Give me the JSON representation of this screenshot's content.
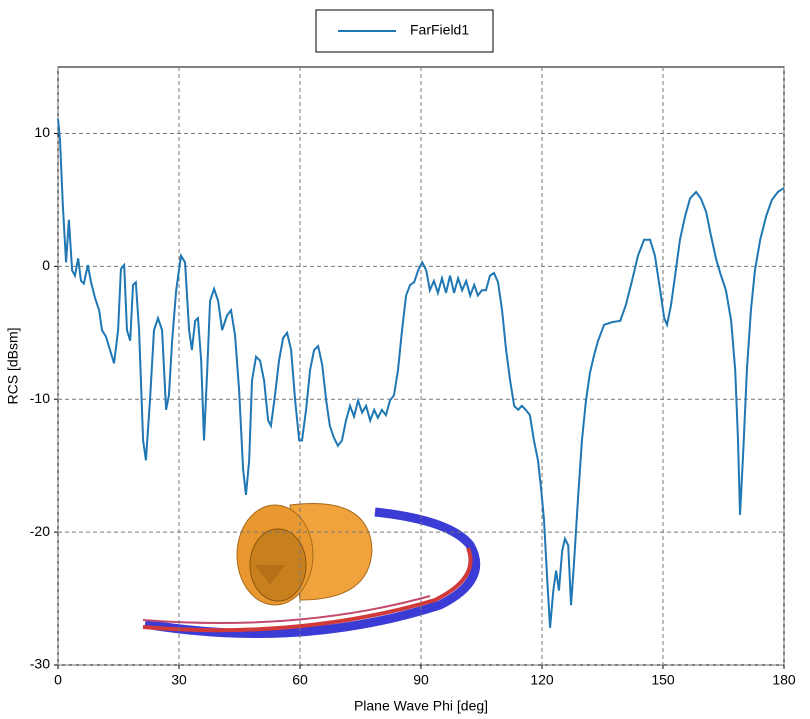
{
  "chart_data": {
    "type": "line",
    "xlabel": "Plane Wave Phi [deg]",
    "ylabel": "RCS [dBsm]",
    "xlim": [
      0,
      180
    ],
    "ylim": [
      -30,
      15
    ],
    "xticks": [
      0,
      30,
      60,
      90,
      120,
      150,
      180
    ],
    "yticks": [
      -30,
      -20,
      -10,
      0,
      10
    ],
    "grid": true,
    "legend": "top",
    "x": [
      0,
      0.5,
      1.2,
      2,
      2.7,
      3.5,
      4.2,
      5,
      5.7,
      6.4,
      7.4,
      8.2,
      9.2,
      10.2,
      10.9,
      11.9,
      12.9,
      13.9,
      14.9,
      15.6,
      16.4,
      17.1,
      17.9,
      18.6,
      19.3,
      20.1,
      21.1,
      21.8,
      22.8,
      23.8,
      24.8,
      25.8,
      26.8,
      27.5,
      28.3,
      29.3,
      30.5,
      31.5,
      32.5,
      33.2,
      34,
      34.7,
      35.5,
      36.2,
      37,
      37.7,
      38.7,
      39.7,
      40.7,
      41.9,
      42.9,
      43.9,
      44.9,
      45.9,
      46.6,
      47.4,
      48.1,
      49.1,
      50.1,
      51.1,
      52.1,
      52.8,
      53.8,
      54.8,
      55.8,
      56.8,
      57.8,
      58.8,
      59.8,
      60.5,
      61.5,
      62.5,
      63.5,
      64.5,
      65.5,
      66.5,
      67.4,
      68.4,
      69.4,
      70.4,
      71.4,
      72.4,
      73.4,
      74.4,
      75.4,
      76.4,
      77.4,
      78.4,
      79.3,
      80.3,
      81.3,
      82.3,
      83.3,
      84.3,
      85.3,
      86.3,
      87.3,
      88.3,
      89.3,
      90.3,
      91.3,
      92.2,
      93.2,
      94.2,
      95.2,
      96.2,
      97.2,
      98.2,
      99.2,
      100.2,
      101.2,
      102.2,
      103.2,
      104.1,
      105.1,
      106.1,
      107.1,
      108.1,
      109.1,
      110.1,
      111.1,
      112.1,
      113.1,
      114.1,
      115,
      116,
      117,
      118,
      119,
      119.8,
      120.5,
      121.3,
      122,
      122.8,
      123.5,
      124.2,
      125,
      125.7,
      126.5,
      127.2,
      127.9,
      128.9,
      129.9,
      130.9,
      131.9,
      132.9,
      133.9,
      135.4,
      137.4,
      139.4,
      140.8,
      142.3,
      143.8,
      145.3,
      146.8,
      148,
      149.3,
      150.3,
      151,
      152,
      153,
      154.2,
      155.5,
      156.7,
      158.2,
      159.4,
      160.7,
      161.9,
      163.2,
      164.4,
      165.6,
      166.9,
      167.9,
      168.6,
      169.1,
      169.9,
      170.8,
      171.8,
      172.8,
      174.1,
      175.6,
      177,
      178.5,
      180
    ],
    "series": [
      {
        "name": "FarField1",
        "color": "#1f77b4",
        "values": [
          11.1,
          9.5,
          4.6,
          0.3,
          3.5,
          -0.3,
          -0.7,
          0.6,
          -1.1,
          -1.3,
          0.1,
          -1.2,
          -2.4,
          -3.3,
          -4.8,
          -5.3,
          -6.3,
          -7.3,
          -4.8,
          -0.2,
          0.1,
          -4.8,
          -5.6,
          -1.4,
          -1.2,
          -4.8,
          -13.1,
          -14.6,
          -10.1,
          -4.8,
          -3.9,
          -4.8,
          -10.8,
          -9.7,
          -5.6,
          -1.8,
          0.8,
          0.3,
          -4.8,
          -6.3,
          -4.1,
          -3.9,
          -7.1,
          -13.1,
          -7.8,
          -2.6,
          -1.7,
          -2.6,
          -4.8,
          -3.7,
          -3.3,
          -5.2,
          -9.3,
          -15.3,
          -17.2,
          -14.6,
          -8.6,
          -6.8,
          -7.1,
          -8.6,
          -11.6,
          -12,
          -9.7,
          -7.1,
          -5.4,
          -5,
          -6.3,
          -10.1,
          -13.1,
          -13.1,
          -10.8,
          -7.8,
          -6.3,
          -6,
          -7.4,
          -10.1,
          -12,
          -12.9,
          -13.5,
          -13.1,
          -11.6,
          -10.5,
          -11.3,
          -10.1,
          -11,
          -10.5,
          -11.6,
          -10.8,
          -11.4,
          -10.8,
          -11.2,
          -10.1,
          -9.7,
          -7.8,
          -4.8,
          -2.2,
          -1.4,
          -1.2,
          -0.3,
          0.3,
          -0.3,
          -1.8,
          -1.1,
          -2,
          -0.9,
          -2,
          -0.7,
          -2,
          -0.9,
          -1.8,
          -1.1,
          -2.2,
          -1.4,
          -2.2,
          -1.8,
          -1.8,
          -0.7,
          -0.5,
          -1.2,
          -3.3,
          -6.3,
          -8.6,
          -10.5,
          -10.8,
          -10.5,
          -10.8,
          -11.2,
          -13.1,
          -14.6,
          -16.8,
          -19.1,
          -23.6,
          -27.2,
          -24.4,
          -22.9,
          -24.4,
          -21.4,
          -20.5,
          -21,
          -25.5,
          -22.5,
          -17.6,
          -13.1,
          -10.1,
          -8,
          -6.7,
          -5.6,
          -4.4,
          -4.2,
          -4.1,
          -2.9,
          -1.1,
          0.8,
          2,
          2,
          0.8,
          -1.8,
          -3.9,
          -4.4,
          -2.9,
          -0.7,
          2,
          3.8,
          5.1,
          5.6,
          5.1,
          4.1,
          2.3,
          0.5,
          -0.7,
          -1.8,
          -4.1,
          -7.8,
          -13.1,
          -18.7,
          -13.9,
          -7.8,
          -3.3,
          -0.3,
          2,
          3.8,
          5,
          5.6,
          5.9
        ]
      }
    ]
  }
}
